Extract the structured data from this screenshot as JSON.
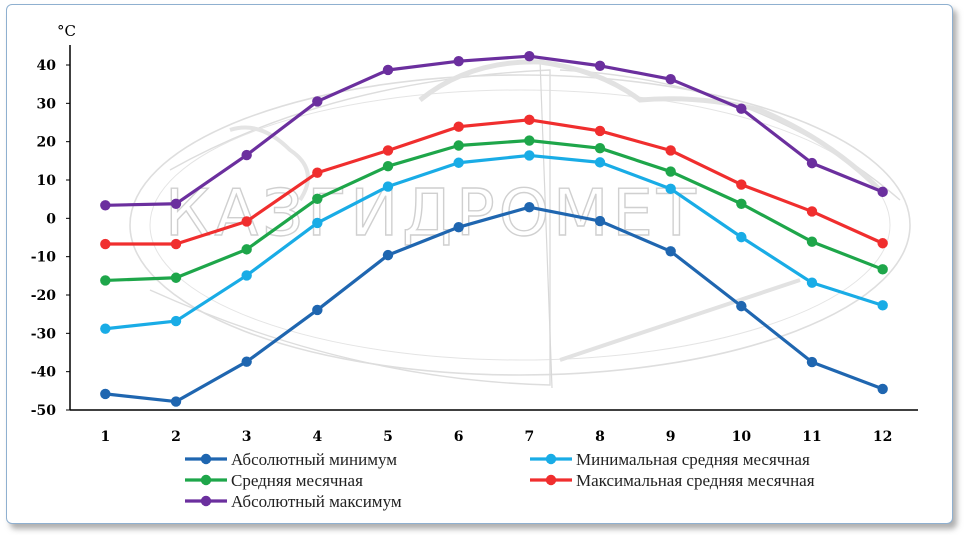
{
  "chart_data": {
    "type": "line",
    "ylabel": "°C",
    "ylim": [
      -50,
      40
    ],
    "ytick_step": 10,
    "categories": [
      "1",
      "2",
      "3",
      "4",
      "5",
      "6",
      "7",
      "8",
      "9",
      "10",
      "11",
      "12"
    ],
    "grid": false,
    "legend_position": "bottom",
    "watermark_text": "КАЗГИДРОМЕТ",
    "series": [
      {
        "name": "Абсолютный минимум",
        "color": "#1f66b0",
        "values": [
          -45.8,
          -47.8,
          -37.4,
          -23.9,
          -9.6,
          -2.3,
          2.9,
          -0.7,
          -8.6,
          -22.9,
          -37.5,
          -44.5
        ]
      },
      {
        "name": "Минимальная средняя месячная",
        "color": "#19ace6",
        "values": [
          -28.8,
          -26.8,
          -14.9,
          -1.2,
          8.3,
          14.5,
          16.4,
          14.6,
          7.7,
          -4.9,
          -16.8,
          -22.7
        ]
      },
      {
        "name": "Средняя месячная",
        "color": "#1ea64a",
        "values": [
          -16.2,
          -15.5,
          -8.1,
          5.1,
          13.6,
          19.0,
          20.3,
          18.3,
          12.2,
          3.8,
          -6.1,
          -13.3
        ]
      },
      {
        "name": "Максимальная средняя месячная",
        "color": "#f02e2e",
        "values": [
          -6.7,
          -6.7,
          -0.8,
          11.9,
          17.7,
          23.9,
          25.7,
          22.8,
          17.7,
          8.8,
          1.8,
          -6.5
        ]
      },
      {
        "name": "Абсолютный максимум",
        "color": "#6b2f9e",
        "values": [
          3.4,
          3.8,
          16.5,
          30.5,
          38.7,
          41.0,
          42.3,
          39.8,
          36.3,
          28.6,
          14.4,
          6.9
        ]
      }
    ]
  }
}
